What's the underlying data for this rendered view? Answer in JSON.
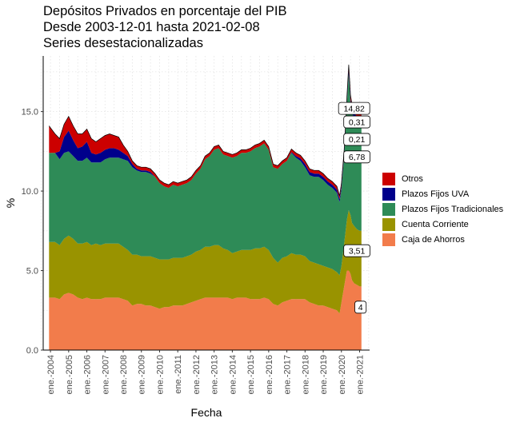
{
  "title_lines": [
    "Depósitos Privados en porcentaje del PIB",
    "Desde 2003-12-01 hasta 2021-02-08",
    "Series desestacionalizadas"
  ],
  "chart_data": {
    "type": "area",
    "stacked": true,
    "xlabel": "Fecha",
    "ylabel": "%",
    "ylim": [
      0,
      18.5
    ],
    "y_ticks": [
      "0.0",
      "5.0",
      "10.0",
      "15.0"
    ],
    "y_tick_values": [
      0,
      5,
      10,
      15
    ],
    "x_tick_labels": [
      "ene.-2004",
      "ene.-2005",
      "ene.-2006",
      "ene.-2007",
      "ene.-2008",
      "ene.-2009",
      "ene.-2010",
      "ene.-2011",
      "ene.-2012",
      "ene.-2013",
      "ene.-2014",
      "ene.-2015",
      "ene.-2016",
      "ene.-2017",
      "ene.-2018",
      "ene.-2019",
      "ene.-2020",
      "ene.-2021"
    ],
    "x_tick_years": [
      2004,
      2005,
      2006,
      2007,
      2008,
      2009,
      2010,
      2011,
      2012,
      2013,
      2014,
      2015,
      2016,
      2017,
      2018,
      2019,
      2020,
      2021
    ],
    "xlim": [
      2003.6,
      2021.55
    ],
    "grid": true,
    "legend_position": "right",
    "x": [
      2003.92,
      2004.25,
      2004.5,
      2004.75,
      2005.0,
      2005.25,
      2005.5,
      2005.75,
      2006.0,
      2006.25,
      2006.5,
      2006.75,
      2007.0,
      2007.25,
      2007.5,
      2007.75,
      2008.0,
      2008.25,
      2008.5,
      2008.75,
      2009.0,
      2009.25,
      2009.5,
      2009.75,
      2010.0,
      2010.25,
      2010.5,
      2010.75,
      2011.0,
      2011.25,
      2011.5,
      2011.75,
      2012.0,
      2012.25,
      2012.5,
      2012.75,
      2013.0,
      2013.25,
      2013.5,
      2013.75,
      2014.0,
      2014.25,
      2014.5,
      2014.75,
      2015.0,
      2015.25,
      2015.5,
      2015.75,
      2016.0,
      2016.25,
      2016.5,
      2016.75,
      2017.0,
      2017.25,
      2017.5,
      2017.75,
      2018.0,
      2018.25,
      2018.5,
      2018.75,
      2019.0,
      2019.25,
      2019.5,
      2019.75,
      2019.9,
      2020.0,
      2020.15,
      2020.3,
      2020.4,
      2020.5,
      2020.58,
      2020.7,
      2020.85,
      2021.0,
      2021.1
    ],
    "series": [
      {
        "name": "Caja de Ahorros",
        "color": "#f27c4b",
        "values": [
          3.3,
          3.3,
          3.2,
          3.5,
          3.6,
          3.5,
          3.3,
          3.2,
          3.3,
          3.2,
          3.2,
          3.2,
          3.3,
          3.3,
          3.3,
          3.3,
          3.2,
          3.1,
          2.8,
          2.9,
          2.9,
          2.8,
          2.8,
          2.7,
          2.6,
          2.7,
          2.7,
          2.8,
          2.8,
          2.8,
          2.9,
          3.0,
          3.1,
          3.2,
          3.3,
          3.3,
          3.3,
          3.3,
          3.3,
          3.3,
          3.2,
          3.3,
          3.3,
          3.3,
          3.2,
          3.2,
          3.2,
          3.3,
          3.2,
          2.9,
          2.8,
          3.0,
          3.1,
          3.2,
          3.2,
          3.2,
          3.2,
          3.0,
          2.9,
          2.8,
          2.8,
          2.7,
          2.6,
          2.5,
          2.3,
          3.0,
          4.0,
          5.0,
          5.0,
          4.8,
          4.4,
          4.2,
          4.1,
          4.0,
          4.0
        ]
      },
      {
        "name": "Cuenta Corriente",
        "color": "#999300",
        "values": [
          3.5,
          3.5,
          3.4,
          3.5,
          3.6,
          3.5,
          3.4,
          3.5,
          3.5,
          3.4,
          3.5,
          3.4,
          3.4,
          3.4,
          3.4,
          3.4,
          3.3,
          3.2,
          3.2,
          3.1,
          3.0,
          3.1,
          3.1,
          3.1,
          3.1,
          3.0,
          3.0,
          3.0,
          3.0,
          3.0,
          3.0,
          3.0,
          3.1,
          3.1,
          3.2,
          3.2,
          3.3,
          3.3,
          3.1,
          3.0,
          2.9,
          2.9,
          3.0,
          3.0,
          3.1,
          3.2,
          3.2,
          3.2,
          3.1,
          2.9,
          2.7,
          2.8,
          2.8,
          2.9,
          2.8,
          2.8,
          2.7,
          2.6,
          2.6,
          2.6,
          2.5,
          2.5,
          2.5,
          2.4,
          2.4,
          2.3,
          2.7,
          3.2,
          3.8,
          3.7,
          3.6,
          3.6,
          3.5,
          3.5,
          3.5
        ]
      },
      {
        "name": "Plazos Fijos Tradicionales",
        "color": "#2e8b57",
        "values": [
          5.6,
          5.6,
          5.4,
          5.4,
          5.3,
          5.2,
          5.2,
          5.2,
          5.3,
          5.2,
          5.1,
          5.2,
          5.3,
          5.4,
          5.4,
          5.4,
          5.5,
          5.6,
          5.5,
          5.3,
          5.3,
          5.3,
          5.2,
          5.1,
          4.8,
          4.6,
          4.5,
          4.6,
          4.5,
          4.6,
          4.6,
          4.7,
          4.9,
          5.1,
          5.5,
          5.7,
          6.0,
          6.1,
          5.9,
          5.9,
          6.0,
          6.0,
          6.1,
          6.1,
          6.2,
          6.3,
          6.4,
          6.5,
          6.3,
          5.7,
          5.9,
          5.9,
          6.0,
          6.3,
          6.1,
          5.9,
          5.6,
          5.4,
          5.4,
          5.5,
          5.4,
          5.2,
          5.1,
          5.0,
          4.6,
          4.8,
          5.5,
          7.3,
          8.6,
          7.0,
          6.9,
          6.8,
          6.8,
          6.8,
          6.8
        ]
      },
      {
        "name": "Plazos Fijos UVA",
        "color": "#00008b",
        "values": [
          0.0,
          0.0,
          0.5,
          1.0,
          1.3,
          1.0,
          0.8,
          0.9,
          1.0,
          0.6,
          0.5,
          0.6,
          0.6,
          0.6,
          0.6,
          0.5,
          0.4,
          0.3,
          0.2,
          0.1,
          0.1,
          0.1,
          0.1,
          0.0,
          0.0,
          0.0,
          0.0,
          0.0,
          0.0,
          0.0,
          0.0,
          0.0,
          0.0,
          0.0,
          0.0,
          0.0,
          0.0,
          0.0,
          0.0,
          0.0,
          0.0,
          0.0,
          0.0,
          0.0,
          0.0,
          0.0,
          0.0,
          0.0,
          0.0,
          0.0,
          0.0,
          0.0,
          0.0,
          0.05,
          0.1,
          0.15,
          0.2,
          0.2,
          0.2,
          0.2,
          0.2,
          0.2,
          0.2,
          0.2,
          0.2,
          0.2,
          0.2,
          0.2,
          0.25,
          0.25,
          0.3,
          0.3,
          0.3,
          0.31,
          0.31
        ]
      },
      {
        "name": "Otros",
        "color": "#cc0000",
        "values": [
          1.7,
          1.2,
          0.8,
          0.8,
          0.9,
          0.9,
          0.9,
          0.8,
          0.8,
          0.9,
          0.8,
          0.9,
          0.9,
          0.9,
          0.8,
          0.8,
          0.5,
          0.3,
          0.2,
          0.2,
          0.2,
          0.2,
          0.2,
          0.2,
          0.2,
          0.2,
          0.2,
          0.2,
          0.2,
          0.2,
          0.2,
          0.2,
          0.2,
          0.2,
          0.2,
          0.2,
          0.2,
          0.2,
          0.2,
          0.2,
          0.2,
          0.2,
          0.2,
          0.2,
          0.2,
          0.2,
          0.2,
          0.2,
          0.2,
          0.2,
          0.2,
          0.2,
          0.2,
          0.2,
          0.2,
          0.2,
          0.2,
          0.2,
          0.2,
          0.2,
          0.2,
          0.2,
          0.2,
          0.2,
          0.2,
          0.2,
          0.2,
          0.2,
          0.3,
          0.3,
          0.25,
          0.2,
          0.2,
          0.21,
          0.21
        ]
      }
    ],
    "annotations": [
      {
        "text": "14,82",
        "x": 2020.7,
        "y": 15.2
      },
      {
        "text": "0,31",
        "x": 2020.85,
        "y": 14.35
      },
      {
        "text": "0,21",
        "x": 2020.85,
        "y": 13.25
      },
      {
        "text": "6,78",
        "x": 2020.85,
        "y": 12.15
      },
      {
        "text": "3,51",
        "x": 2020.85,
        "y": 6.25
      },
      {
        "text": "4",
        "x": 2021.05,
        "y": 2.7
      }
    ],
    "reference_line": {
      "y": 0,
      "style": "dashed"
    }
  }
}
